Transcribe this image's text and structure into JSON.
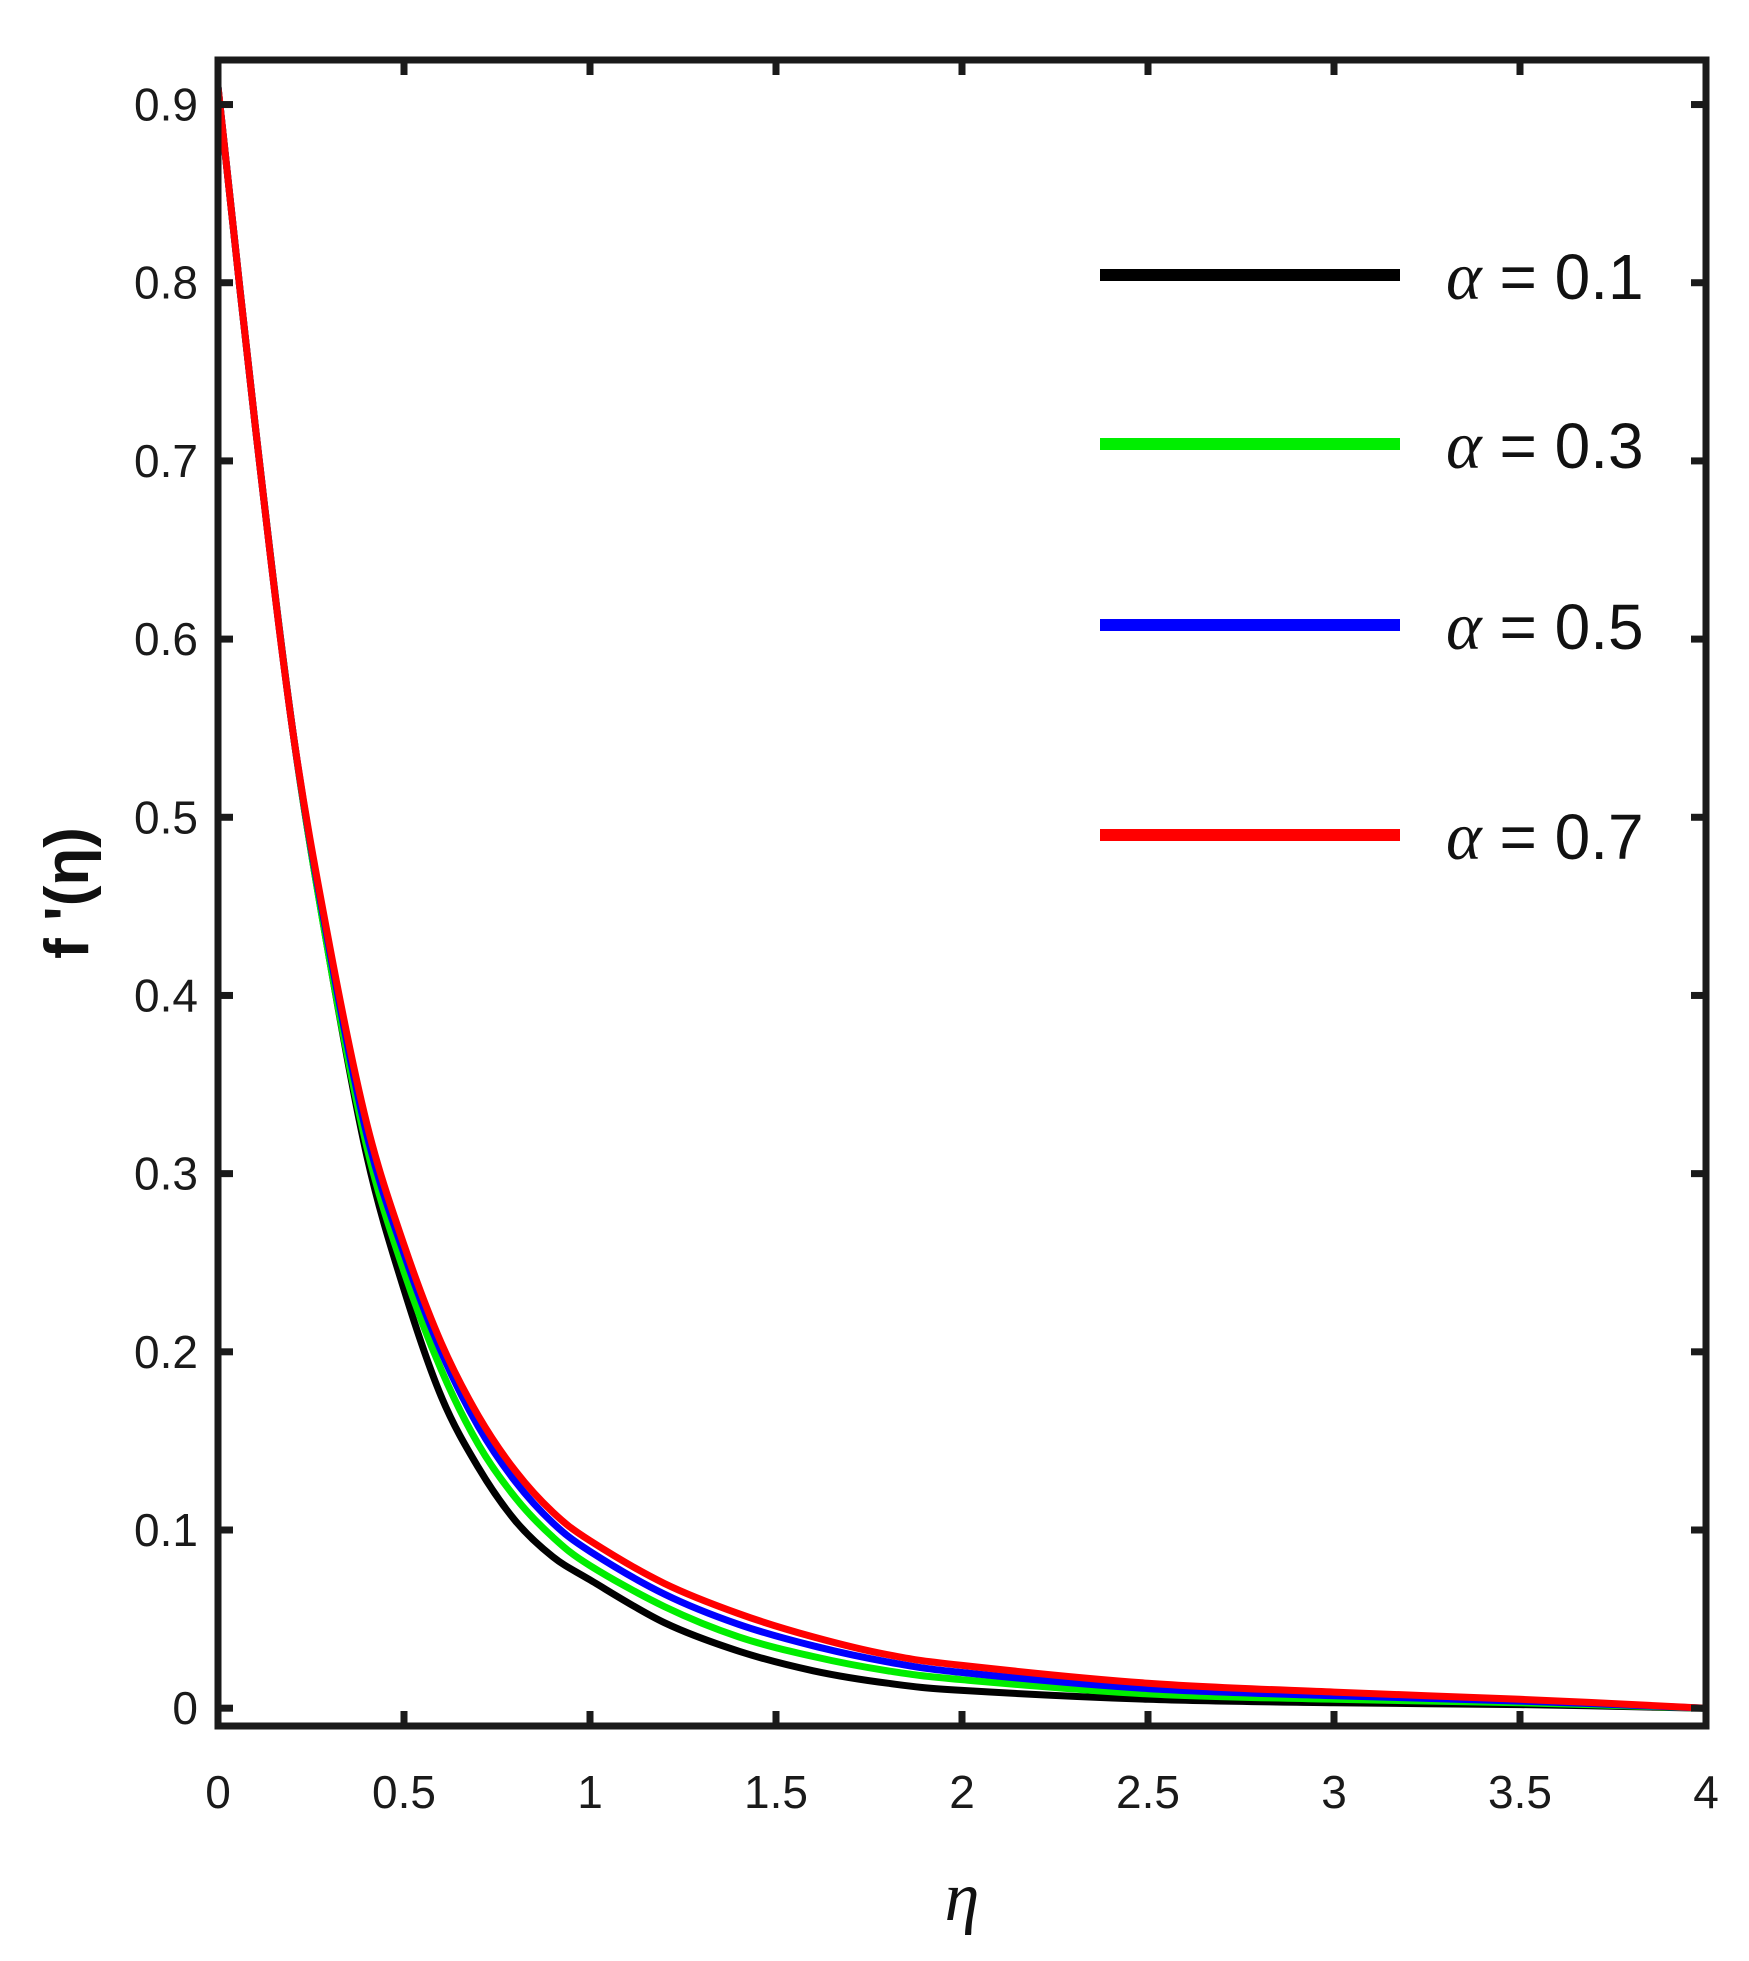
{
  "chart_data": {
    "type": "line",
    "title": "",
    "xlabel": "η",
    "ylabel": "f '(η)",
    "xlim": [
      0,
      4
    ],
    "ylim": [
      -0.01,
      0.925
    ],
    "xticks": [
      0,
      0.5,
      1,
      1.5,
      2,
      2.5,
      3,
      3.5,
      4
    ],
    "xtick_labels": [
      "0",
      "0.5",
      "1",
      "1.5",
      "2",
      "2.5",
      "3",
      "3.5",
      "4"
    ],
    "yticks": [
      0,
      0.1,
      0.2,
      0.3,
      0.4,
      0.5,
      0.6,
      0.7,
      0.8,
      0.9
    ],
    "ytick_labels": [
      "0",
      "0.1",
      "0.2",
      "0.3",
      "0.4",
      "0.5",
      "0.6",
      "0.7",
      "0.8",
      "0.9"
    ],
    "grid": false,
    "legend_position": "top-right",
    "x": [
      0,
      0.1,
      0.2,
      0.3,
      0.4,
      0.5,
      0.6,
      0.7,
      0.8,
      0.9,
      1.0,
      1.2,
      1.4,
      1.6,
      1.8,
      2.0,
      2.5,
      3.0,
      3.5,
      4.0
    ],
    "series": [
      {
        "name": "α = 0.1",
        "legend_symbol": "α",
        "legend_text": " = 0.1",
        "color": "#000000",
        "values": [
          0.91,
          0.72,
          0.55,
          0.42,
          0.31,
          0.235,
          0.175,
          0.135,
          0.105,
          0.085,
          0.072,
          0.048,
          0.032,
          0.021,
          0.014,
          0.01,
          0.005,
          0.003,
          0.002,
          0.0
        ]
      },
      {
        "name": "α = 0.3",
        "legend_symbol": "α",
        "legend_text": " = 0.3",
        "color": "#00ee00",
        "values": [
          0.91,
          0.72,
          0.55,
          0.42,
          0.315,
          0.245,
          0.19,
          0.148,
          0.118,
          0.096,
          0.08,
          0.057,
          0.04,
          0.029,
          0.021,
          0.016,
          0.008,
          0.005,
          0.003,
          0.0
        ]
      },
      {
        "name": "α = 0.5",
        "legend_symbol": "α",
        "legend_text": " = 0.5",
        "color": "#0000ff",
        "values": [
          0.91,
          0.72,
          0.55,
          0.425,
          0.322,
          0.255,
          0.2,
          0.158,
          0.127,
          0.104,
          0.088,
          0.064,
          0.047,
          0.035,
          0.026,
          0.02,
          0.011,
          0.007,
          0.004,
          0.0
        ]
      },
      {
        "name": "α = 0.7",
        "legend_symbol": "α",
        "legend_text": " = 0.7",
        "color": "#ff0000",
        "values": [
          0.91,
          0.72,
          0.55,
          0.428,
          0.328,
          0.26,
          0.205,
          0.164,
          0.133,
          0.11,
          0.094,
          0.07,
          0.053,
          0.04,
          0.03,
          0.024,
          0.014,
          0.009,
          0.005,
          0.0
        ]
      }
    ]
  }
}
